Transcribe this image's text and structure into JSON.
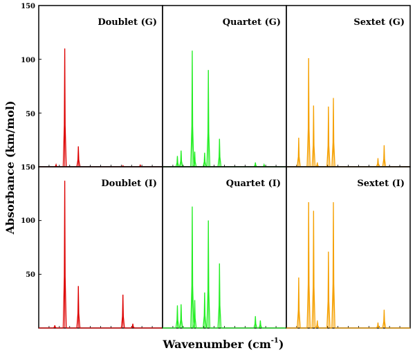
{
  "chart_data": {
    "type": "line",
    "xlabel": "Wavenumber (cm",
    "xlabel_sup": "-1",
    "xlabel_close": ")",
    "ylabel": "Absorbance (km/mol)",
    "ylim": [
      0,
      150
    ],
    "yticks": [
      "150",
      "100",
      "50"
    ],
    "grid": false,
    "panels": [
      {
        "title": "Doublet (G)",
        "color": "#dd0000",
        "peaks": [
          {
            "x": 0.14,
            "y": 2
          },
          {
            "x": 0.21,
            "y": 110
          },
          {
            "x": 0.32,
            "y": 19
          },
          {
            "x": 0.68,
            "y": 1
          },
          {
            "x": 0.82,
            "y": 1.5
          }
        ]
      },
      {
        "title": "Quartet (G)",
        "color": "#22ee22",
        "peaks": [
          {
            "x": 0.12,
            "y": 10
          },
          {
            "x": 0.15,
            "y": 15
          },
          {
            "x": 0.24,
            "y": 108
          },
          {
            "x": 0.26,
            "y": 14
          },
          {
            "x": 0.34,
            "y": 13
          },
          {
            "x": 0.37,
            "y": 90
          },
          {
            "x": 0.46,
            "y": 26
          },
          {
            "x": 0.75,
            "y": 4
          },
          {
            "x": 0.82,
            "y": 2
          }
        ]
      },
      {
        "title": "Sextet (G)",
        "color": "#f5a000",
        "peaks": [
          {
            "x": 0.1,
            "y": 27
          },
          {
            "x": 0.18,
            "y": 101
          },
          {
            "x": 0.22,
            "y": 57
          },
          {
            "x": 0.25,
            "y": 4
          },
          {
            "x": 0.34,
            "y": 56
          },
          {
            "x": 0.38,
            "y": 64
          },
          {
            "x": 0.74,
            "y": 8
          },
          {
            "x": 0.79,
            "y": 20
          }
        ]
      },
      {
        "title": "Doublet (I)",
        "color": "#dd0000",
        "peaks": [
          {
            "x": 0.13,
            "y": 2.5
          },
          {
            "x": 0.21,
            "y": 137
          },
          {
            "x": 0.32,
            "y": 39
          },
          {
            "x": 0.68,
            "y": 31
          },
          {
            "x": 0.76,
            "y": 4
          }
        ]
      },
      {
        "title": "Quartet (I)",
        "color": "#22ee22",
        "peaks": [
          {
            "x": 0.12,
            "y": 21
          },
          {
            "x": 0.15,
            "y": 22
          },
          {
            "x": 0.24,
            "y": 113
          },
          {
            "x": 0.26,
            "y": 26
          },
          {
            "x": 0.34,
            "y": 33
          },
          {
            "x": 0.37,
            "y": 100
          },
          {
            "x": 0.46,
            "y": 60
          },
          {
            "x": 0.75,
            "y": 11
          },
          {
            "x": 0.79,
            "y": 7
          }
        ]
      },
      {
        "title": "Sextet (I)",
        "color": "#f5a000",
        "peaks": [
          {
            "x": 0.1,
            "y": 47
          },
          {
            "x": 0.18,
            "y": 117
          },
          {
            "x": 0.22,
            "y": 109
          },
          {
            "x": 0.25,
            "y": 7
          },
          {
            "x": 0.34,
            "y": 71
          },
          {
            "x": 0.38,
            "y": 117
          },
          {
            "x": 0.74,
            "y": 5
          },
          {
            "x": 0.79,
            "y": 17
          }
        ]
      }
    ]
  }
}
